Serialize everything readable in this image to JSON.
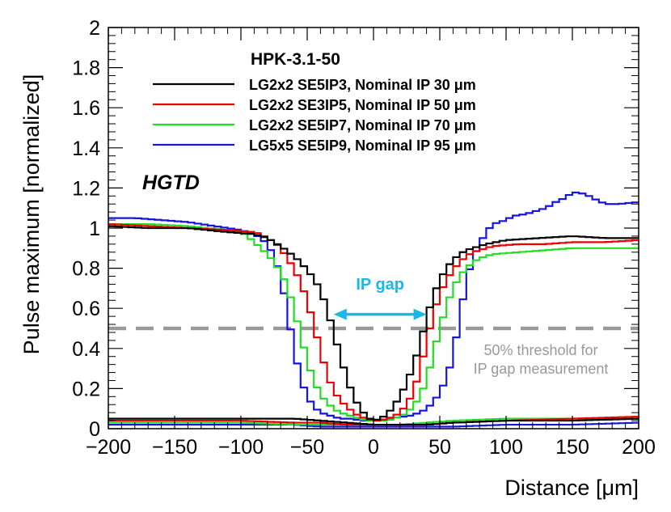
{
  "chart_data": {
    "type": "line",
    "style": "step-histogram",
    "title": "HPK-3.1-50",
    "experiment_label": "HGTD",
    "xlabel": "Distance [μm]",
    "ylabel": "Pulse maximum [normalized]",
    "xlim": [
      -200,
      200
    ],
    "ylim": [
      0,
      2
    ],
    "x_ticks": [
      -200,
      -150,
      -100,
      -50,
      0,
      50,
      100,
      150,
      200
    ],
    "x_tick_labels": [
      "−200",
      "−150",
      "−100",
      "−50",
      "0",
      "50",
      "100",
      "150",
      "200"
    ],
    "y_ticks": [
      0,
      0.2,
      0.4,
      0.6,
      0.8,
      1,
      1.2,
      1.4,
      1.6,
      1.8,
      2
    ],
    "y_tick_labels": [
      "0",
      "0.2",
      "0.4",
      "0.6",
      "0.8",
      "1",
      "1.2",
      "1.4",
      "1.6",
      "1.8",
      "2"
    ],
    "bin_width": 5,
    "legend_position": "top-center",
    "threshold": {
      "value": 0.5,
      "color": "#999999",
      "label_lines": [
        "50% threshold for",
        "IP gap measurement"
      ]
    },
    "annotation": {
      "label": "IP gap",
      "color": "#1ab8e8",
      "x_from": -30,
      "x_to": 40,
      "y": 0.57
    },
    "series": [
      {
        "name": "LG2x2 SE5IP3, Nominal IP 30 μm",
        "color": "#000000",
        "main": [
          [
            -200,
            1.01
          ],
          [
            -170,
            1.0
          ],
          [
            -140,
            1.0
          ],
          [
            -110,
            0.98
          ],
          [
            -90,
            0.97
          ],
          [
            -80,
            0.95
          ],
          [
            -70,
            0.91
          ],
          [
            -60,
            0.86
          ],
          [
            -55,
            0.83
          ],
          [
            -50,
            0.79
          ],
          [
            -45,
            0.75
          ],
          [
            -40,
            0.69
          ],
          [
            -35,
            0.6
          ],
          [
            -30,
            0.48
          ],
          [
            -25,
            0.36
          ],
          [
            -20,
            0.25
          ],
          [
            -15,
            0.16
          ],
          [
            -10,
            0.1
          ],
          [
            -5,
            0.06
          ],
          [
            0,
            0.04
          ],
          [
            5,
            0.05
          ],
          [
            10,
            0.07
          ],
          [
            15,
            0.11
          ],
          [
            20,
            0.16
          ],
          [
            25,
            0.23
          ],
          [
            30,
            0.31
          ],
          [
            35,
            0.42
          ],
          [
            40,
            0.55
          ],
          [
            45,
            0.66
          ],
          [
            50,
            0.74
          ],
          [
            55,
            0.8
          ],
          [
            60,
            0.84
          ],
          [
            65,
            0.87
          ],
          [
            70,
            0.89
          ],
          [
            75,
            0.9
          ],
          [
            85,
            0.92
          ],
          [
            100,
            0.94
          ],
          [
            125,
            0.95
          ],
          [
            150,
            0.96
          ],
          [
            175,
            0.95
          ],
          [
            200,
            0.95
          ]
        ],
        "base": [
          [
            -200,
            0.05
          ],
          [
            -150,
            0.05
          ],
          [
            -100,
            0.05
          ],
          [
            -60,
            0.05
          ],
          [
            -40,
            0.04
          ],
          [
            -20,
            0.03
          ],
          [
            0,
            0.02
          ],
          [
            20,
            0.02
          ],
          [
            40,
            0.02
          ],
          [
            60,
            0.03
          ],
          [
            100,
            0.04
          ],
          [
            150,
            0.04
          ],
          [
            200,
            0.05
          ]
        ]
      },
      {
        "name": "LG2x2 SE3IP5, Nominal IP 50 μm",
        "color": "#ee0000",
        "main": [
          [
            -200,
            1.02
          ],
          [
            -170,
            1.01
          ],
          [
            -140,
            1.0
          ],
          [
            -110,
            0.99
          ],
          [
            -90,
            0.98
          ],
          [
            -85,
            0.97
          ],
          [
            -80,
            0.95
          ],
          [
            -75,
            0.93
          ],
          [
            -70,
            0.9
          ],
          [
            -65,
            0.85
          ],
          [
            -60,
            0.8
          ],
          [
            -55,
            0.73
          ],
          [
            -50,
            0.64
          ],
          [
            -45,
            0.52
          ],
          [
            -40,
            0.39
          ],
          [
            -35,
            0.27
          ],
          [
            -30,
            0.19
          ],
          [
            -25,
            0.14
          ],
          [
            -20,
            0.11
          ],
          [
            -15,
            0.08
          ],
          [
            -10,
            0.06
          ],
          [
            -5,
            0.05
          ],
          [
            0,
            0.04
          ],
          [
            5,
            0.04
          ],
          [
            10,
            0.05
          ],
          [
            15,
            0.06
          ],
          [
            20,
            0.08
          ],
          [
            25,
            0.12
          ],
          [
            30,
            0.18
          ],
          [
            35,
            0.29
          ],
          [
            40,
            0.43
          ],
          [
            45,
            0.57
          ],
          [
            50,
            0.67
          ],
          [
            55,
            0.74
          ],
          [
            60,
            0.79
          ],
          [
            65,
            0.83
          ],
          [
            70,
            0.86
          ],
          [
            75,
            0.88
          ],
          [
            80,
            0.89
          ],
          [
            90,
            0.91
          ],
          [
            110,
            0.92
          ],
          [
            130,
            0.92
          ],
          [
            150,
            0.93
          ],
          [
            175,
            0.93
          ],
          [
            200,
            0.94
          ]
        ],
        "base": [
          [
            -200,
            0.04
          ],
          [
            -150,
            0.04
          ],
          [
            -100,
            0.04
          ],
          [
            -60,
            0.03
          ],
          [
            -40,
            0.03
          ],
          [
            -20,
            0.02
          ],
          [
            0,
            0.02
          ],
          [
            20,
            0.02
          ],
          [
            40,
            0.02
          ],
          [
            60,
            0.03
          ],
          [
            100,
            0.04
          ],
          [
            150,
            0.05
          ],
          [
            200,
            0.06
          ]
        ]
      },
      {
        "name": "LG2x2 SE5IP7, Nominal IP 70 μm",
        "color": "#22dd22",
        "main": [
          [
            -200,
            1.02
          ],
          [
            -170,
            1.02
          ],
          [
            -140,
            1.01
          ],
          [
            -110,
            0.99
          ],
          [
            -100,
            0.98
          ],
          [
            -95,
            0.96
          ],
          [
            -90,
            0.93
          ],
          [
            -85,
            0.9
          ],
          [
            -80,
            0.87
          ],
          [
            -75,
            0.83
          ],
          [
            -70,
            0.78
          ],
          [
            -65,
            0.71
          ],
          [
            -60,
            0.6
          ],
          [
            -55,
            0.47
          ],
          [
            -50,
            0.34
          ],
          [
            -45,
            0.24
          ],
          [
            -40,
            0.17
          ],
          [
            -35,
            0.13
          ],
          [
            -30,
            0.1
          ],
          [
            -25,
            0.08
          ],
          [
            -20,
            0.07
          ],
          [
            -15,
            0.06
          ],
          [
            -10,
            0.05
          ],
          [
            -5,
            0.04
          ],
          [
            0,
            0.04
          ],
          [
            5,
            0.04
          ],
          [
            10,
            0.04
          ],
          [
            15,
            0.05
          ],
          [
            20,
            0.06
          ],
          [
            25,
            0.08
          ],
          [
            30,
            0.11
          ],
          [
            35,
            0.16
          ],
          [
            40,
            0.24
          ],
          [
            45,
            0.37
          ],
          [
            50,
            0.5
          ],
          [
            55,
            0.61
          ],
          [
            60,
            0.7
          ],
          [
            65,
            0.76
          ],
          [
            70,
            0.8
          ],
          [
            75,
            0.83
          ],
          [
            80,
            0.85
          ],
          [
            90,
            0.87
          ],
          [
            110,
            0.88
          ],
          [
            130,
            0.89
          ],
          [
            150,
            0.9
          ],
          [
            175,
            0.9
          ],
          [
            200,
            0.9
          ]
        ],
        "base": [
          [
            -200,
            0.03
          ],
          [
            -150,
            0.03
          ],
          [
            -100,
            0.03
          ],
          [
            -60,
            0.02
          ],
          [
            -40,
            0.02
          ],
          [
            -20,
            0.02
          ],
          [
            0,
            0.02
          ],
          [
            20,
            0.02
          ],
          [
            40,
            0.03
          ],
          [
            60,
            0.04
          ],
          [
            100,
            0.05
          ],
          [
            150,
            0.05
          ],
          [
            200,
            0.05
          ]
        ]
      },
      {
        "name": "LG5x5 SE5IP9, Nominal IP 95 μm",
        "color": "#1515dd",
        "main": [
          [
            -200,
            1.05
          ],
          [
            -180,
            1.05
          ],
          [
            -160,
            1.04
          ],
          [
            -140,
            1.03
          ],
          [
            -120,
            1.01
          ],
          [
            -100,
            0.99
          ],
          [
            -90,
            0.97
          ],
          [
            -85,
            0.95
          ],
          [
            -80,
            0.92
          ],
          [
            -75,
            0.86
          ],
          [
            -70,
            0.76
          ],
          [
            -65,
            0.59
          ],
          [
            -60,
            0.4
          ],
          [
            -55,
            0.25
          ],
          [
            -50,
            0.16
          ],
          [
            -45,
            0.11
          ],
          [
            -40,
            0.08
          ],
          [
            -35,
            0.07
          ],
          [
            -30,
            0.06
          ],
          [
            -25,
            0.05
          ],
          [
            -20,
            0.05
          ],
          [
            -15,
            0.05
          ],
          [
            -10,
            0.04
          ],
          [
            -5,
            0.04
          ],
          [
            0,
            0.04
          ],
          [
            5,
            0.04
          ],
          [
            10,
            0.05
          ],
          [
            15,
            0.05
          ],
          [
            20,
            0.06
          ],
          [
            25,
            0.06
          ],
          [
            30,
            0.07
          ],
          [
            35,
            0.08
          ],
          [
            40,
            0.1
          ],
          [
            45,
            0.13
          ],
          [
            50,
            0.18
          ],
          [
            55,
            0.25
          ],
          [
            60,
            0.36
          ],
          [
            65,
            0.55
          ],
          [
            70,
            0.74
          ],
          [
            75,
            0.85
          ],
          [
            80,
            0.92
          ],
          [
            85,
            0.98
          ],
          [
            90,
            1.02
          ],
          [
            95,
            1.03
          ],
          [
            100,
            1.04
          ],
          [
            105,
            1.06
          ],
          [
            115,
            1.07
          ],
          [
            125,
            1.09
          ],
          [
            130,
            1.1
          ],
          [
            135,
            1.12
          ],
          [
            140,
            1.14
          ],
          [
            145,
            1.15
          ],
          [
            150,
            1.18
          ],
          [
            160,
            1.17
          ],
          [
            165,
            1.15
          ],
          [
            175,
            1.12
          ],
          [
            185,
            1.12
          ],
          [
            200,
            1.13
          ]
        ],
        "base": [
          [
            -200,
            0.02
          ],
          [
            -150,
            0.02
          ],
          [
            -100,
            0.02
          ],
          [
            -60,
            0.02
          ],
          [
            -40,
            0.01
          ],
          [
            -20,
            0.01
          ],
          [
            0,
            0.01
          ],
          [
            20,
            0.01
          ],
          [
            40,
            0.01
          ],
          [
            60,
            0.01
          ],
          [
            100,
            0.02
          ],
          [
            150,
            0.02
          ],
          [
            200,
            0.03
          ]
        ]
      }
    ]
  }
}
